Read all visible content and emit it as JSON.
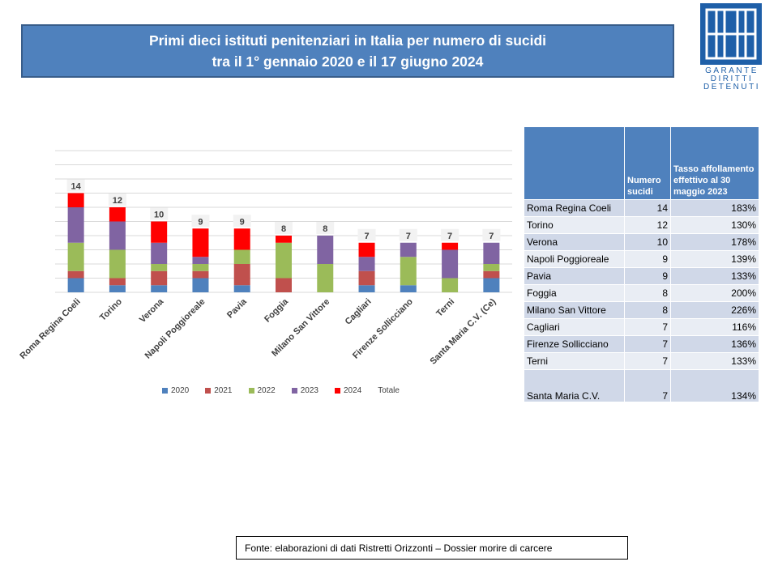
{
  "header": {
    "title_line1": "Primi dieci istituti penitenziari in Italia per numero di sucidi",
    "title_line2": "tra il 1° gennaio 2020 e il 17 giugno 2024"
  },
  "logo": {
    "text_line1": "GARANTE",
    "text_line2": "DIRITTI",
    "text_line3": "DETENUTI",
    "color": "#1e5fa8"
  },
  "chart_data": {
    "type": "bar",
    "stacked": true,
    "categories": [
      "Roma Regina Coeli",
      "Torino",
      "Verona",
      "Napoli Poggioreale",
      "Pavia",
      "Foggia",
      "Milano San Vittore",
      "Cagliari",
      "Firenze Sollicciano",
      "Terni",
      "Santa Maria C.V. (Ce)"
    ],
    "series": [
      {
        "name": "2020",
        "color": "#4f81bd",
        "values": [
          2,
          1,
          1,
          2,
          1,
          0,
          0,
          1,
          1,
          0,
          2
        ]
      },
      {
        "name": "2021",
        "color": "#c0504d",
        "values": [
          1,
          1,
          2,
          1,
          3,
          2,
          0,
          2,
          0,
          0,
          1
        ]
      },
      {
        "name": "2022",
        "color": "#9bbb59",
        "values": [
          4,
          4,
          1,
          1,
          2,
          5,
          4,
          0,
          4,
          2,
          1
        ]
      },
      {
        "name": "2023",
        "color": "#8064a2",
        "values": [
          5,
          4,
          3,
          1,
          0,
          0,
          4,
          2,
          2,
          4,
          3
        ]
      },
      {
        "name": "2024",
        "color": "#ff0000",
        "values": [
          2,
          2,
          3,
          4,
          3,
          1,
          0,
          2,
          0,
          1,
          0
        ]
      }
    ],
    "totals": [
      14,
      12,
      10,
      9,
      9,
      8,
      8,
      7,
      7,
      7,
      7
    ],
    "totals_legend_label": "Totale",
    "ylim": [
      0,
      20
    ],
    "grid": true,
    "legend_position": "bottom"
  },
  "table": {
    "header_col2": "Numero sucidi",
    "header_col3": "Tasso affollamento effettivo al 30 maggio 2023",
    "rows": [
      {
        "name": "Roma Regina Coeli",
        "count": "14",
        "rate": "183%"
      },
      {
        "name": "Torino",
        "count": "12",
        "rate": "130%"
      },
      {
        "name": "Verona",
        "count": "10",
        "rate": "178%"
      },
      {
        "name": "Napoli Poggioreale",
        "count": "9",
        "rate": "139%"
      },
      {
        "name": "Pavia",
        "count": "9",
        "rate": "133%"
      },
      {
        "name": "Foggia",
        "count": "8",
        "rate": "200%"
      },
      {
        "name": "Milano San Vittore",
        "count": "8",
        "rate": "226%"
      },
      {
        "name": "Cagliari",
        "count": "7",
        "rate": "116%"
      },
      {
        "name": "Firenze Sollicciano",
        "count": "7",
        "rate": "136%"
      },
      {
        "name": "Terni",
        "count": "7",
        "rate": "133%"
      },
      {
        "name": "Santa Maria C.V.",
        "count": "7",
        "rate": "134%"
      }
    ]
  },
  "source": {
    "text": "Fonte:  elaborazioni di dati Ristretti Orizzonti  – Dossier morire  di carcere"
  }
}
